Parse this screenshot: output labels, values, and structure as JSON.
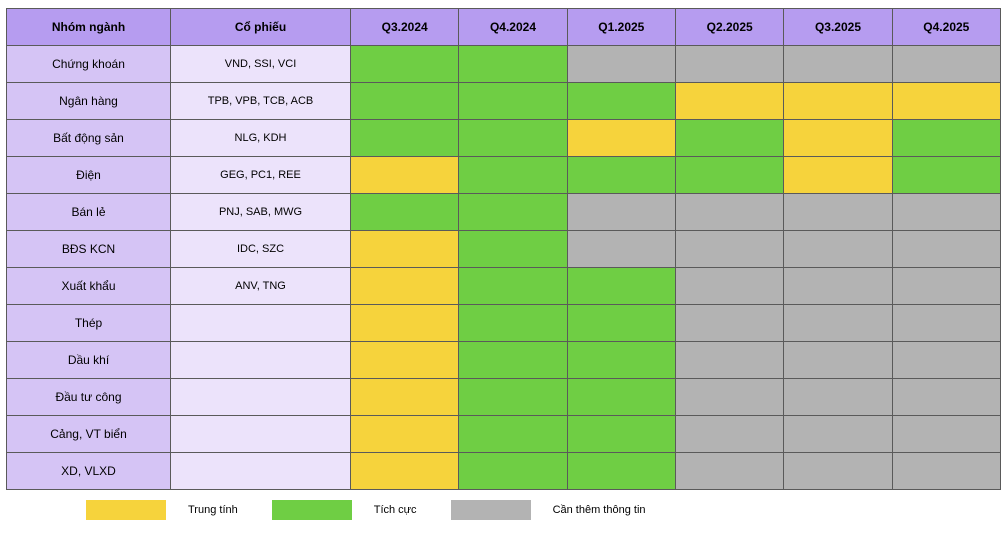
{
  "colors": {
    "header_bg": "#b69cf0",
    "sector_col_bg": "#d5c4f5",
    "stock_col_bg": "#ece3fb",
    "neutral": "#f6d33c",
    "positive": "#6fce44",
    "need_info": "#b3b3b3",
    "border": "#5a5a5a"
  },
  "headers": {
    "sector": "Nhóm ngành",
    "stock": "Cổ phiếu",
    "quarters": [
      "Q3.2024",
      "Q4.2024",
      "Q1.2025",
      "Q2.2025",
      "Q3.2025",
      "Q4.2025"
    ]
  },
  "legend": [
    {
      "label": "Trung tính",
      "color_key": "neutral"
    },
    {
      "label": "Tích cực",
      "color_key": "positive"
    },
    {
      "label": "Cần thêm thông tin",
      "color_key": "need_info"
    }
  ],
  "rows": [
    {
      "sector": "Chứng khoán",
      "stocks": "VND, SSI, VCI",
      "cells": [
        "positive",
        "positive",
        "need_info",
        "need_info",
        "need_info",
        "need_info"
      ]
    },
    {
      "sector": "Ngân hàng",
      "stocks": "TPB, VPB, TCB, ACB",
      "cells": [
        "positive",
        "positive",
        "positive",
        "neutral",
        "neutral",
        "neutral"
      ]
    },
    {
      "sector": "Bất động sản",
      "stocks": "NLG, KDH",
      "cells": [
        "positive",
        "positive",
        "neutral",
        "positive",
        "neutral",
        "positive"
      ]
    },
    {
      "sector": "Điện",
      "stocks": "GEG, PC1, REE",
      "cells": [
        "neutral",
        "positive",
        "positive",
        "positive",
        "neutral",
        "positive"
      ]
    },
    {
      "sector": "Bán lẻ",
      "stocks": "PNJ, SAB, MWG",
      "cells": [
        "positive",
        "positive",
        "need_info",
        "need_info",
        "need_info",
        "need_info"
      ]
    },
    {
      "sector": "BĐS KCN",
      "stocks": "IDC, SZC",
      "cells": [
        "neutral",
        "positive",
        "need_info",
        "need_info",
        "need_info",
        "need_info"
      ]
    },
    {
      "sector": "Xuất khẩu",
      "stocks": "ANV, TNG",
      "cells": [
        "neutral",
        "positive",
        "positive",
        "need_info",
        "need_info",
        "need_info"
      ]
    },
    {
      "sector": "Thép",
      "stocks": "",
      "cells": [
        "neutral",
        "positive",
        "positive",
        "need_info",
        "need_info",
        "need_info"
      ]
    },
    {
      "sector": "Dầu khí",
      "stocks": "",
      "cells": [
        "neutral",
        "positive",
        "positive",
        "need_info",
        "need_info",
        "need_info"
      ]
    },
    {
      "sector": "Đầu tư công",
      "stocks": "",
      "cells": [
        "neutral",
        "positive",
        "positive",
        "need_info",
        "need_info",
        "need_info"
      ]
    },
    {
      "sector": "Cảng, VT biển",
      "stocks": "",
      "cells": [
        "neutral",
        "positive",
        "positive",
        "need_info",
        "need_info",
        "need_info"
      ]
    },
    {
      "sector": "XD, VLXD",
      "stocks": "",
      "cells": [
        "neutral",
        "positive",
        "positive",
        "need_info",
        "need_info",
        "need_info"
      ]
    }
  ]
}
